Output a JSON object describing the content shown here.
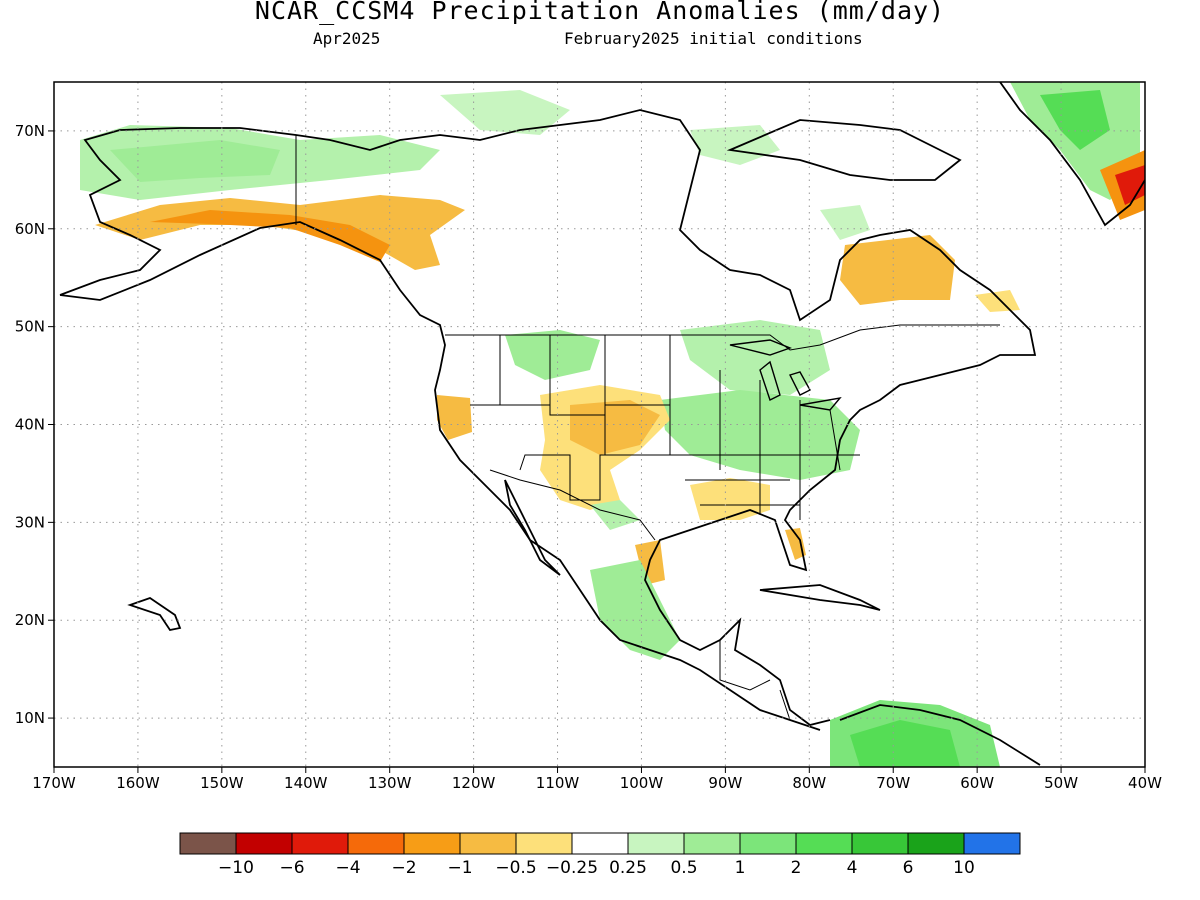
{
  "title": "NCAR_CCSM4 Precipitation Anomalies (mm/day)",
  "subtitle_left": "Apr2025",
  "subtitle_right": "February2025 initial conditions",
  "map": {
    "lon_range": [
      -170,
      -40
    ],
    "lat_range": [
      5,
      75
    ],
    "lon_ticks": [
      "170W",
      "160W",
      "150W",
      "140W",
      "130W",
      "120W",
      "110W",
      "100W",
      "90W",
      "80W",
      "70W",
      "60W",
      "50W",
      "40W"
    ],
    "lat_ticks": [
      "70N",
      "60N",
      "50N",
      "40N",
      "30N",
      "20N",
      "10N"
    ],
    "gridlines": "dotted",
    "features": [
      "coastlines",
      "country-borders",
      "us-state-borders"
    ]
  },
  "colorbar": {
    "colors": [
      "#7b5449",
      "#c20000",
      "#e01a0a",
      "#f56a0a",
      "#f79d16",
      "#f6bb42",
      "#fde07a",
      "#ffffff",
      "#c8f5c0",
      "#9fec96",
      "#7ce57a",
      "#55dd55",
      "#38c738",
      "#1aa31a",
      "#2273e8"
    ],
    "labels": [
      "−10",
      "−6",
      "−4",
      "−2",
      "−1",
      "−0.5",
      "−0.25",
      "0.25",
      "0.5",
      "1",
      "2",
      "4",
      "6",
      "10"
    ]
  },
  "anomaly_regions": [
    {
      "name": "alaska-north-slope",
      "category": "0.5"
    },
    {
      "name": "alaska-gulf-coast",
      "category": "-1"
    },
    {
      "name": "canadian-arctic",
      "category": "0.25"
    },
    {
      "name": "quebec-labrador",
      "category": "-0.5"
    },
    {
      "name": "us-southwest-rockies",
      "category": "-0.5"
    },
    {
      "name": "ohio-valley",
      "category": "0.5"
    },
    {
      "name": "gulf-coast",
      "category": "-0.5"
    },
    {
      "name": "southern-mexico",
      "category": "1"
    },
    {
      "name": "northern-south-america",
      "category": "1"
    },
    {
      "name": "greenland-east",
      "category": "1"
    },
    {
      "name": "greenland-south-tip",
      "category": "-2"
    }
  ]
}
